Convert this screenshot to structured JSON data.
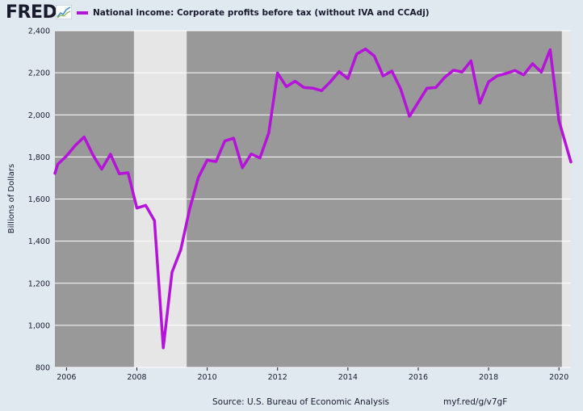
{
  "brand": {
    "logo_text": "FRED",
    "logo_icon": "chart-line-icon"
  },
  "legend": {
    "label": "National income: Corporate profits before tax (without IVA and CCAdj)",
    "color": "#b513d9"
  },
  "footer": {
    "source": "Source: U.S. Bureau of Economic Analysis",
    "link": "myf.red/g/v7gF"
  },
  "colors": {
    "plot_bg": "#999999",
    "recession": "#e6e6e6",
    "line": "#b513d9",
    "grid": "#ffffff",
    "page_bg": "#e1e9f0"
  },
  "chart_data": {
    "type": "line",
    "title": "",
    "xlabel": "",
    "ylabel": "Billions of Dollars",
    "xlim": [
      2005.67,
      2020.34
    ],
    "ylim": [
      800,
      2400
    ],
    "y_ticks": [
      800,
      1000,
      1200,
      1400,
      1600,
      1800,
      2000,
      2200,
      2400
    ],
    "y_tick_labels": [
      "800",
      "1,000",
      "1,200",
      "1,400",
      "1,600",
      "1,800",
      "2,000",
      "2,200",
      "2,400"
    ],
    "x_ticks": [
      2006,
      2008,
      2010,
      2012,
      2014,
      2016,
      2018,
      2020
    ],
    "x_tick_labels": [
      "2006",
      "2008",
      "2010",
      "2012",
      "2014",
      "2016",
      "2018",
      "2020"
    ],
    "grid": true,
    "recessions": [
      [
        2007.917,
        2009.417
      ],
      [
        2020.083,
        2020.34
      ]
    ],
    "series": [
      {
        "name": "National income: Corporate profits before tax (without IVA and CCAdj)",
        "x": [
          2005.67,
          2005.75,
          2006.0,
          2006.25,
          2006.5,
          2006.75,
          2007.0,
          2007.25,
          2007.5,
          2007.75,
          2008.0,
          2008.25,
          2008.5,
          2008.75,
          2009.0,
          2009.25,
          2009.5,
          2009.75,
          2010.0,
          2010.25,
          2010.5,
          2010.75,
          2011.0,
          2011.25,
          2011.5,
          2011.75,
          2012.0,
          2012.25,
          2012.5,
          2012.75,
          2013.0,
          2013.25,
          2013.5,
          2013.75,
          2014.0,
          2014.25,
          2014.5,
          2014.75,
          2015.0,
          2015.25,
          2015.5,
          2015.75,
          2016.0,
          2016.25,
          2016.5,
          2016.75,
          2017.0,
          2017.25,
          2017.5,
          2017.75,
          2018.0,
          2018.25,
          2018.5,
          2018.75,
          2019.0,
          2019.25,
          2019.5,
          2019.75,
          2020.0,
          2020.34
        ],
        "values": [
          1722,
          1765,
          1805,
          1855,
          1895,
          1810,
          1742,
          1813,
          1720,
          1725,
          1557,
          1570,
          1497,
          893,
          1252,
          1360,
          1552,
          1703,
          1785,
          1778,
          1876,
          1889,
          1749,
          1814,
          1795,
          1914,
          2199,
          2134,
          2160,
          2130,
          2127,
          2115,
          2157,
          2206,
          2172,
          2289,
          2313,
          2280,
          2185,
          2208,
          2123,
          1993,
          2060,
          2127,
          2130,
          2178,
          2212,
          2204,
          2257,
          2056,
          2157,
          2186,
          2197,
          2211,
          2190,
          2243,
          2203,
          2310,
          1972,
          1776
        ]
      }
    ]
  }
}
